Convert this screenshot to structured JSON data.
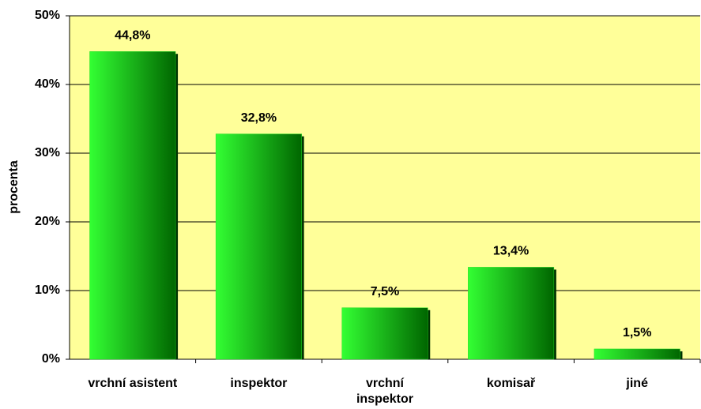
{
  "chart_data": {
    "type": "bar",
    "y_label": "procenta",
    "categories": [
      "vrchní asistent",
      "inspektor",
      "vrchní\ninspektor",
      "komisař",
      "jiné"
    ],
    "values": [
      44.8,
      32.8,
      7.5,
      13.4,
      1.5
    ],
    "value_labels": [
      "44,8%",
      "32,8%",
      "7,5%",
      "13,4%",
      "1,5%"
    ],
    "color": "#22dd22",
    "ylim": [
      0,
      50
    ],
    "yticks": [
      {
        "value": 0,
        "label": "0%"
      },
      {
        "value": 10,
        "label": "10%"
      },
      {
        "value": 20,
        "label": "20%"
      },
      {
        "value": 30,
        "label": "30%"
      },
      {
        "value": 40,
        "label": "40%"
      },
      {
        "value": 50,
        "label": "50%"
      }
    ],
    "grid": true,
    "background": "#ffff99"
  }
}
